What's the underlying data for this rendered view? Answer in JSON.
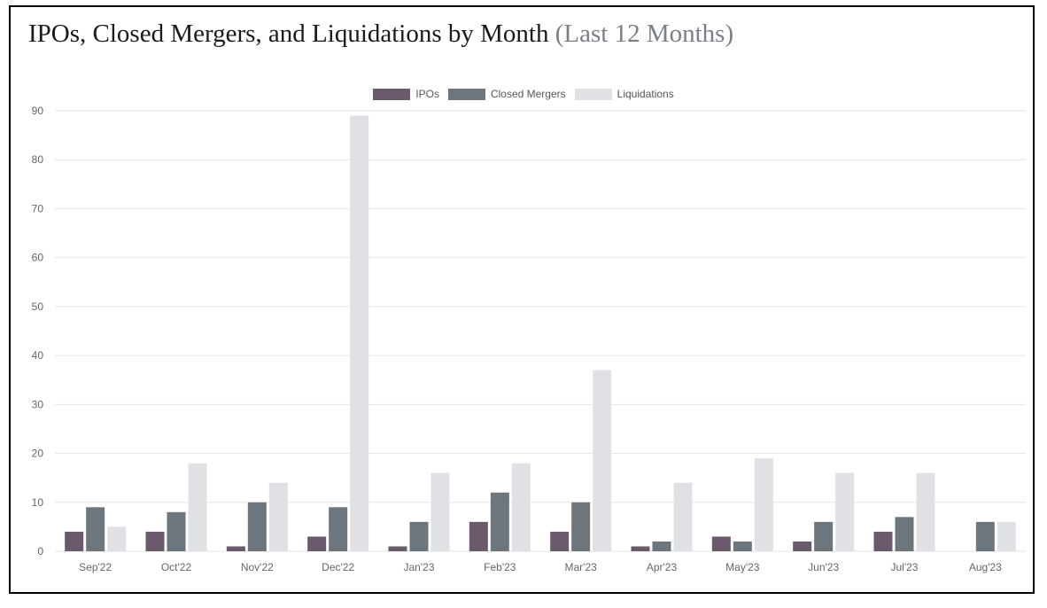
{
  "title": "IPOs, Closed Mergers, and Liquidations by Month",
  "subtitle": "(Last 12 Months)",
  "colors": {
    "ipos": "#6b5a6b",
    "closed_mergers": "#6e767d",
    "liquidations": "#dfe1e4",
    "grid": "#e6e6e6"
  },
  "chart_data": {
    "type": "bar",
    "title": "IPOs, Closed Mergers, and Liquidations by Month (Last 12 Months)",
    "xlabel": "",
    "ylabel": "",
    "ylim": [
      0,
      90
    ],
    "yticks": [
      0,
      10,
      20,
      30,
      40,
      50,
      60,
      70,
      80,
      90
    ],
    "grid": true,
    "legend_position": "top-center",
    "categories": [
      "Sep'22",
      "Oct'22",
      "Nov'22",
      "Dec'22",
      "Jan'23",
      "Feb'23",
      "Mar'23",
      "Apr'23",
      "May'23",
      "Jun'23",
      "Jul'23",
      "Aug'23"
    ],
    "series": [
      {
        "name": "IPOs",
        "color": "#6b5a6b",
        "values": [
          4,
          4,
          1,
          3,
          1,
          6,
          4,
          1,
          3,
          2,
          4,
          0
        ]
      },
      {
        "name": "Closed Mergers",
        "color": "#6e767d",
        "values": [
          9,
          8,
          10,
          9,
          6,
          12,
          10,
          2,
          2,
          6,
          7,
          6
        ]
      },
      {
        "name": "Liquidations",
        "color": "#dfe1e4",
        "values": [
          5,
          18,
          14,
          89,
          16,
          18,
          37,
          14,
          19,
          16,
          16,
          6
        ]
      }
    ]
  }
}
